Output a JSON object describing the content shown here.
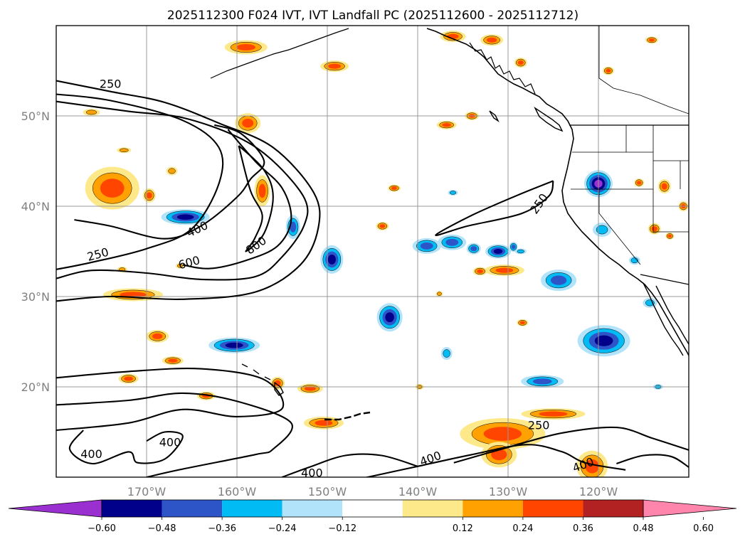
{
  "title": "2025112300 F024 IVT, IVT Landfall PC (2025112600 - 2025112712)",
  "map": {
    "lon_range": [
      -180,
      -110
    ],
    "lat_range": [
      10,
      60
    ],
    "lat_ticks": [
      {
        "lat": 50,
        "label": "50°N"
      },
      {
        "lat": 40,
        "label": "40°N"
      },
      {
        "lat": 30,
        "label": "30°N"
      },
      {
        "lat": 20,
        "label": "20°N"
      }
    ],
    "lon_ticks": [
      {
        "lon": -170,
        "label": "170°W"
      },
      {
        "lon": -160,
        "label": "160°W"
      },
      {
        "lon": -150,
        "label": "150°W"
      },
      {
        "lon": -140,
        "label": "140°W"
      },
      {
        "lon": -130,
        "label": "130°W"
      },
      {
        "lon": -120,
        "label": "120°W"
      }
    ],
    "contour_labels": [
      {
        "text": "250",
        "lon": -174.0,
        "lat": 53.6,
        "rot": 0
      },
      {
        "text": "400",
        "lon": -164.4,
        "lat": 37.5,
        "rot": -25
      },
      {
        "text": "800",
        "lon": -157.9,
        "lat": 35.7,
        "rot": -35
      },
      {
        "text": "600",
        "lon": -165.3,
        "lat": 33.8,
        "rot": -15
      },
      {
        "text": "250",
        "lon": -175.4,
        "lat": 34.7,
        "rot": -15
      },
      {
        "text": "250",
        "lon": -126.6,
        "lat": 40.3,
        "rot": -55
      },
      {
        "text": "250",
        "lon": -126.6,
        "lat": 15.8,
        "rot": 0
      },
      {
        "text": "400",
        "lon": -167.4,
        "lat": 13.9,
        "rot": 0
      },
      {
        "text": "400",
        "lon": -176.1,
        "lat": 12.6,
        "rot": 0
      },
      {
        "text": "400",
        "lon": -138.6,
        "lat": 12.1,
        "rot": -20
      },
      {
        "text": "400",
        "lon": -151.7,
        "lat": 10.5,
        "rot": 0
      },
      {
        "text": "400",
        "lon": -121.7,
        "lat": 11.4,
        "rot": -20
      }
    ],
    "ivt_contours": [
      {
        "level": 250,
        "points": [
          [
            -180,
            53.9
          ],
          [
            -174,
            52.7
          ],
          [
            -168,
            51.5
          ],
          [
            -162,
            49.2
          ],
          [
            -156,
            46.5
          ],
          [
            -151.5,
            41.5
          ],
          [
            -151,
            37.6
          ],
          [
            -153,
            33.5
          ],
          [
            -158,
            30.5
          ],
          [
            -166,
            29.7
          ],
          [
            -174,
            30.0
          ],
          [
            -180,
            29.5
          ]
        ]
      },
      {
        "level": 250,
        "points": [
          [
            -180,
            52.4
          ],
          [
            -174,
            51.7
          ],
          [
            -166,
            49.5
          ],
          [
            -162,
            46.5
          ],
          [
            -162,
            42.5
          ],
          [
            -165,
            37.5
          ],
          [
            -170,
            35.3
          ],
          [
            -176,
            33.8
          ],
          [
            -180,
            33.0
          ]
        ]
      },
      {
        "level": 400,
        "points": [
          [
            -180,
            51.6
          ],
          [
            -172,
            50.5
          ],
          [
            -166,
            49.8
          ],
          [
            -160,
            47.7
          ],
          [
            -156,
            45.0
          ],
          [
            -152.5,
            40.8
          ],
          [
            -152.6,
            37.8
          ],
          [
            -155,
            34.4
          ],
          [
            -158,
            32.2
          ],
          [
            -164,
            31.9
          ],
          [
            -170,
            32.6
          ],
          [
            -176,
            32.9
          ],
          [
            -180,
            32.0
          ]
        ]
      },
      {
        "level": 400,
        "points": [
          [
            -178,
            38.5
          ],
          [
            -174,
            37.8
          ],
          [
            -168,
            36.4
          ],
          [
            -164,
            37.8
          ],
          [
            -160,
            41.0
          ],
          [
            -158.5,
            43.0
          ],
          [
            -157,
            45.0
          ],
          [
            -159.5,
            48.0
          ],
          [
            -162.5,
            49.0
          ]
        ]
      },
      {
        "level": 600,
        "points": [
          [
            -161,
            48.5
          ],
          [
            -158,
            45.0
          ],
          [
            -155,
            42.0
          ],
          [
            -154,
            38.5
          ],
          [
            -155.5,
            35.6
          ],
          [
            -159,
            34.0
          ],
          [
            -163,
            33.1
          ],
          [
            -166,
            33.5
          ]
        ]
      },
      {
        "level": 800,
        "points": [
          [
            -159.8,
            46.7
          ],
          [
            -157,
            44.0
          ],
          [
            -156,
            41.0
          ],
          [
            -157,
            37.0
          ],
          [
            -159,
            35.0
          ],
          [
            -158,
            36.5
          ],
          [
            -157.2,
            39.0
          ],
          [
            -158.5,
            41.7
          ],
          [
            -159.8,
            46.7
          ]
        ]
      },
      {
        "level": 250,
        "points": [
          [
            -125,
            42.8
          ],
          [
            -129,
            41.2
          ],
          [
            -134,
            39.0
          ],
          [
            -138,
            36.8
          ],
          [
            -134.5,
            37.8
          ],
          [
            -128.5,
            39.2
          ],
          [
            -125.5,
            41.1
          ],
          [
            -125,
            42.8
          ]
        ]
      },
      {
        "level": 250,
        "points": [
          [
            -180,
            21.0
          ],
          [
            -172,
            21.7
          ],
          [
            -164,
            22.0
          ],
          [
            -157,
            20.8
          ],
          [
            -155,
            17.6
          ],
          [
            -160,
            16.7
          ],
          [
            -166,
            17.5
          ],
          [
            -172,
            16.0
          ],
          [
            -180,
            15.2
          ]
        ]
      },
      {
        "level": 400,
        "points": [
          [
            -180,
            18.0
          ],
          [
            -172,
            18.5
          ],
          [
            -166,
            19.3
          ],
          [
            -160,
            18.4
          ],
          [
            -154,
            16.0
          ],
          [
            -156,
            13.1
          ],
          [
            -158,
            12.5
          ],
          [
            -166,
            10.9
          ],
          [
            -170,
            10.0
          ]
        ]
      },
      {
        "level": 400,
        "points": [
          [
            -177,
            15.2
          ],
          [
            -178.5,
            13.1
          ],
          [
            -176,
            11.5
          ],
          [
            -172,
            12.8
          ],
          [
            -171,
            11.6
          ],
          [
            -168,
            12.0
          ],
          [
            -166,
            14.5
          ],
          [
            -168,
            15.0
          ],
          [
            -170,
            14.0
          ]
        ]
      },
      {
        "level": 250,
        "points": [
          [
            -136,
            11.6
          ],
          [
            -130,
            13.3
          ],
          [
            -124,
            14.9
          ],
          [
            -118,
            15.5
          ],
          [
            -114,
            14.3
          ],
          [
            -110,
            13.0
          ]
        ]
      },
      {
        "level": 400,
        "points": [
          [
            -146,
            9.9
          ],
          [
            -140,
            11.2
          ],
          [
            -134,
            12.5
          ],
          [
            -128,
            13.6
          ],
          [
            -124,
            12.8
          ],
          [
            -121.5,
            11.6
          ],
          [
            -117,
            10.8
          ]
        ]
      },
      {
        "level": 400,
        "points": [
          [
            -155,
            10.0
          ],
          [
            -152,
            11.1
          ],
          [
            -148,
            12.4
          ],
          [
            -144,
            12.4
          ],
          [
            -140,
            11.2
          ]
        ]
      },
      {
        "level": 250,
        "points": [
          [
            -110,
            11.1
          ],
          [
            -112,
            12.3
          ],
          [
            -115,
            12.4
          ],
          [
            -118,
            11.5
          ]
        ]
      }
    ],
    "pc_blobs": [
      {
        "lon": -173.8,
        "lat": 42.0,
        "rx": 38,
        "ry": 30,
        "value": 0.42
      },
      {
        "lon": -158.8,
        "lat": 49.2,
        "rx": 18,
        "ry": 14,
        "value": 0.45
      },
      {
        "lon": -157.2,
        "lat": 41.7,
        "rx": 11,
        "ry": 22,
        "value": 0.45
      },
      {
        "lon": -165.7,
        "lat": 38.8,
        "rx": 34,
        "ry": 11,
        "value": -0.5
      },
      {
        "lon": -153.8,
        "lat": 37.7,
        "rx": 10,
        "ry": 17,
        "value": -0.4
      },
      {
        "lon": -149.5,
        "lat": 34.1,
        "rx": 16,
        "ry": 20,
        "value": -0.5
      },
      {
        "lon": -171.5,
        "lat": 30.2,
        "rx": 42,
        "ry": 9,
        "value": 0.4
      },
      {
        "lon": -160.3,
        "lat": 24.6,
        "rx": 36,
        "ry": 11,
        "value": -0.55
      },
      {
        "lon": -168.8,
        "lat": 25.6,
        "rx": 16,
        "ry": 9,
        "value": 0.42
      },
      {
        "lon": -143.1,
        "lat": 27.7,
        "rx": 18,
        "ry": 20,
        "value": -0.48
      },
      {
        "lon": -139.0,
        "lat": 35.6,
        "rx": 20,
        "ry": 11,
        "value": -0.4
      },
      {
        "lon": -136.2,
        "lat": 36.0,
        "rx": 20,
        "ry": 11,
        "value": -0.4
      },
      {
        "lon": -131.1,
        "lat": 35.0,
        "rx": 18,
        "ry": 10,
        "value": -0.5
      },
      {
        "lon": -130.4,
        "lat": 32.9,
        "rx": 28,
        "ry": 8,
        "value": 0.4
      },
      {
        "lon": -124.4,
        "lat": 31.8,
        "rx": 25,
        "ry": 15,
        "value": -0.4
      },
      {
        "lon": -120.0,
        "lat": 42.5,
        "rx": 20,
        "ry": 19,
        "value": -0.6
      },
      {
        "lon": -119.4,
        "lat": 25.1,
        "rx": 37,
        "ry": 22,
        "value": -0.52
      },
      {
        "lon": -126.2,
        "lat": 20.6,
        "rx": 30,
        "ry": 9,
        "value": -0.38
      },
      {
        "lon": -130.6,
        "lat": 14.8,
        "rx": 60,
        "ry": 22,
        "value": 0.42
      },
      {
        "lon": -125.0,
        "lat": 17.0,
        "rx": 45,
        "ry": 8,
        "value": 0.4
      },
      {
        "lon": -131.0,
        "lat": 12.5,
        "rx": 25,
        "ry": 18,
        "value": 0.45
      },
      {
        "lon": -120.7,
        "lat": 11.2,
        "rx": 22,
        "ry": 22,
        "value": 0.45
      },
      {
        "lon": -159.0,
        "lat": 57.6,
        "rx": 30,
        "ry": 10,
        "value": 0.42
      },
      {
        "lon": -149.2,
        "lat": 55.5,
        "rx": 20,
        "ry": 8,
        "value": 0.4
      },
      {
        "lon": -150.4,
        "lat": 16.0,
        "rx": 28,
        "ry": 9,
        "value": 0.42
      },
      {
        "lon": -151.9,
        "lat": 19.8,
        "rx": 18,
        "ry": 7,
        "value": 0.4
      },
      {
        "lon": -176.1,
        "lat": 50.4,
        "rx": 12,
        "ry": 5,
        "value": 0.3
      },
      {
        "lon": -169.7,
        "lat": 41.2,
        "rx": 9,
        "ry": 10,
        "value": 0.36
      },
      {
        "lon": -172.5,
        "lat": 46.2,
        "rx": 10,
        "ry": 4,
        "value": 0.3
      },
      {
        "lon": -167.2,
        "lat": 43.9,
        "rx": 8,
        "ry": 6,
        "value": 0.3
      },
      {
        "lon": -167.1,
        "lat": 22.9,
        "rx": 15,
        "ry": 6,
        "value": 0.36
      },
      {
        "lon": -172.0,
        "lat": 20.9,
        "rx": 14,
        "ry": 7,
        "value": 0.36
      },
      {
        "lon": -163.4,
        "lat": 19.0,
        "rx": 13,
        "ry": 6,
        "value": 0.36
      },
      {
        "lon": -155.5,
        "lat": 20.4,
        "rx": 10,
        "ry": 9,
        "value": 0.36
      },
      {
        "lon": -139.8,
        "lat": 20.0,
        "rx": 6,
        "ry": 4,
        "value": 0.3
      },
      {
        "lon": -136.1,
        "lat": 58.8,
        "rx": 18,
        "ry": 8,
        "value": 0.42
      },
      {
        "lon": -131.8,
        "lat": 58.4,
        "rx": 16,
        "ry": 8,
        "value": 0.42
      },
      {
        "lon": -136.8,
        "lat": 49.0,
        "rx": 14,
        "ry": 6,
        "value": 0.36
      },
      {
        "lon": -134.0,
        "lat": 50.0,
        "rx": 10,
        "ry": 6,
        "value": 0.36
      },
      {
        "lon": -128.6,
        "lat": 55.9,
        "rx": 9,
        "ry": 7,
        "value": 0.36
      },
      {
        "lon": -118.9,
        "lat": 55.0,
        "rx": 8,
        "ry": 6,
        "value": 0.36
      },
      {
        "lon": -114.1,
        "lat": 58.4,
        "rx": 9,
        "ry": 5,
        "value": 0.36
      },
      {
        "lon": -119.6,
        "lat": 37.4,
        "rx": 13,
        "ry": 10,
        "value": -0.3
      },
      {
        "lon": -133.8,
        "lat": 35.3,
        "rx": 10,
        "ry": 8,
        "value": -0.4
      },
      {
        "lon": -116.0,
        "lat": 34.0,
        "rx": 8,
        "ry": 6,
        "value": -0.3
      },
      {
        "lon": -114.3,
        "lat": 29.3,
        "rx": 10,
        "ry": 7,
        "value": -0.3
      },
      {
        "lon": -143.9,
        "lat": 37.8,
        "rx": 9,
        "ry": 6,
        "value": 0.36
      },
      {
        "lon": -142.6,
        "lat": 42.0,
        "rx": 9,
        "ry": 5,
        "value": 0.36
      },
      {
        "lon": -133.1,
        "lat": 32.8,
        "rx": 10,
        "ry": 6,
        "value": 0.36
      },
      {
        "lon": -128.4,
        "lat": 27.1,
        "rx": 8,
        "ry": 5,
        "value": 0.36
      },
      {
        "lon": -136.1,
        "lat": 41.5,
        "rx": 7,
        "ry": 4,
        "value": -0.3
      },
      {
        "lon": -129.4,
        "lat": 35.5,
        "rx": 6,
        "ry": 7,
        "value": -0.4
      },
      {
        "lon": -115.5,
        "lat": 42.6,
        "rx": 7,
        "ry": 6,
        "value": 0.36
      },
      {
        "lon": -112.7,
        "lat": 42.2,
        "rx": 9,
        "ry": 10,
        "value": 0.42
      },
      {
        "lon": -110.6,
        "lat": 40.0,
        "rx": 7,
        "ry": 7,
        "value": 0.36
      },
      {
        "lon": -113.8,
        "lat": 37.5,
        "rx": 9,
        "ry": 8,
        "value": 0.4
      },
      {
        "lon": -112.1,
        "lat": 36.7,
        "rx": 6,
        "ry": 5,
        "value": 0.36
      },
      {
        "lon": -128.6,
        "lat": 35.0,
        "rx": 8,
        "ry": 4,
        "value": -0.3
      },
      {
        "lon": -113.4,
        "lat": 20.0,
        "rx": 7,
        "ry": 4,
        "value": -0.3
      },
      {
        "lon": -137.6,
        "lat": 30.3,
        "rx": 5,
        "ry": 4,
        "value": 0.3
      },
      {
        "lon": -136.8,
        "lat": 23.7,
        "rx": 8,
        "ry": 9,
        "value": -0.3
      },
      {
        "lon": -172.7,
        "lat": 33.0,
        "rx": 7,
        "ry": 4,
        "value": 0.3
      },
      {
        "lon": -166.3,
        "lat": 33.4,
        "rx": 6,
        "ry": 4,
        "value": 0.3
      }
    ]
  },
  "colorbar": {
    "colors": [
      "#9b30d0",
      "#01008a",
      "#2e55c8",
      "#00bbf4",
      "#b1e3fb",
      "#ffffff",
      "#fde88a",
      "#ffa100",
      "#ff4500",
      "#b22222",
      "#ff85ac"
    ],
    "ticks": [
      "−0.60",
      "−0.48",
      "−0.36",
      "−0.24",
      "−0.12",
      "0.12",
      "0.24",
      "0.36",
      "0.48",
      "0.60"
    ]
  }
}
